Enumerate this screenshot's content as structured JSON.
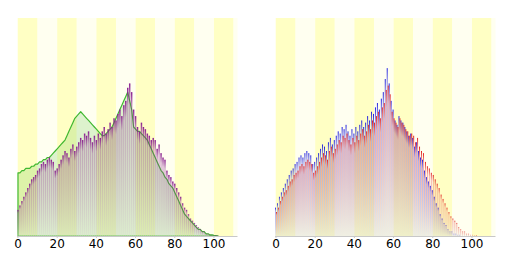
{
  "chart_data": [
    {
      "type": "bar",
      "x": [
        0,
        1,
        2,
        3,
        4,
        5,
        6,
        7,
        8,
        9,
        10,
        11,
        12,
        13,
        14,
        15,
        16,
        17,
        18,
        19,
        20,
        21,
        22,
        23,
        24,
        25,
        26,
        27,
        28,
        29,
        30,
        31,
        32,
        33,
        34,
        35,
        36,
        37,
        38,
        39,
        40,
        41,
        42,
        43,
        44,
        45,
        46,
        47,
        48,
        49,
        50,
        51,
        52,
        53,
        54,
        55,
        56,
        57,
        58,
        59,
        60,
        61,
        62,
        63,
        64,
        65,
        66,
        67,
        68,
        69,
        70,
        71,
        72,
        73,
        74,
        75,
        76,
        77,
        78,
        79,
        80,
        81,
        82,
        83,
        84,
        85,
        86,
        87,
        88,
        89,
        90,
        91,
        92,
        93,
        94,
        95,
        96,
        97,
        98,
        99,
        100,
        101,
        102
      ],
      "xlim": [
        -0.5,
        112
      ],
      "xticks": [
        0,
        20,
        40,
        60,
        80,
        100
      ],
      "ylim": [
        0,
        100
      ],
      "tick_labels": "x",
      "series": [
        {
          "type": "area",
          "color": "#40b830",
          "values": [
            29,
            29,
            30,
            30,
            31,
            31,
            31,
            32,
            32,
            33,
            33,
            34,
            34,
            35,
            35,
            36,
            36,
            37,
            38,
            39,
            40,
            41,
            42,
            43,
            44,
            46,
            48,
            50,
            52,
            54,
            55,
            56,
            57,
            56,
            55,
            54,
            53,
            52,
            51,
            50,
            49,
            48,
            47,
            46,
            46,
            47,
            48,
            49,
            50,
            52,
            54,
            56,
            58,
            60,
            62,
            64,
            66,
            62,
            58,
            50,
            49,
            48,
            48,
            47,
            46,
            45,
            44,
            42,
            40,
            38,
            36,
            34,
            32,
            30,
            29,
            27,
            26,
            24,
            23,
            22,
            20,
            18,
            16,
            14,
            12,
            10,
            9,
            8,
            7,
            6,
            5,
            4,
            3,
            3,
            2,
            2,
            1,
            1,
            0.5,
            0.5,
            0.3,
            0.2,
            0.1
          ]
        },
        {
          "type": "bar",
          "color": "#8a2090",
          "values": [
            12,
            14,
            16,
            18,
            20,
            22,
            24,
            26,
            27,
            28,
            30,
            31,
            33,
            34,
            33,
            35,
            36,
            35,
            34,
            30,
            31,
            33,
            35,
            37,
            39,
            38,
            36,
            40,
            42,
            39,
            41,
            43,
            45,
            44,
            47,
            46,
            48,
            45,
            43,
            46,
            44,
            47,
            45,
            48,
            50,
            47,
            49,
            52,
            50,
            54,
            53,
            56,
            58,
            55,
            60,
            62,
            68,
            70,
            66,
            58,
            55,
            50,
            48,
            52,
            50,
            49,
            47,
            46,
            44,
            45,
            44,
            40,
            42,
            38,
            36,
            35,
            30,
            28,
            27,
            25,
            24,
            22,
            20,
            18,
            15,
            13,
            12,
            10,
            8,
            7,
            6,
            5,
            4,
            3,
            2,
            2,
            1,
            1,
            0.5,
            0.5,
            0.3,
            0.2,
            0.1
          ]
        }
      ]
    },
    {
      "type": "bar",
      "x": [
        0,
        1,
        2,
        3,
        4,
        5,
        6,
        7,
        8,
        9,
        10,
        11,
        12,
        13,
        14,
        15,
        16,
        17,
        18,
        19,
        20,
        21,
        22,
        23,
        24,
        25,
        26,
        27,
        28,
        29,
        30,
        31,
        32,
        33,
        34,
        35,
        36,
        37,
        38,
        39,
        40,
        41,
        42,
        43,
        44,
        45,
        46,
        47,
        48,
        49,
        50,
        51,
        52,
        53,
        54,
        55,
        56,
        57,
        58,
        59,
        60,
        61,
        62,
        63,
        64,
        65,
        66,
        67,
        68,
        69,
        70,
        71,
        72,
        73,
        74,
        75,
        76,
        77,
        78,
        79,
        80,
        81,
        82,
        83,
        84,
        85,
        86,
        87,
        88,
        89,
        90,
        91,
        92,
        93,
        94,
        95,
        96,
        97,
        98,
        99,
        100,
        101,
        102
      ],
      "xlim": [
        -0.5,
        112
      ],
      "xticks": [
        0,
        20,
        40,
        60,
        80,
        100
      ],
      "ylim": [
        0,
        100
      ],
      "tick_labels": "x",
      "series": [
        {
          "type": "bar",
          "color": "#1a1ae0",
          "values": [
            13,
            15,
            18,
            20,
            22,
            24,
            26,
            28,
            30,
            31,
            33,
            34,
            36,
            37,
            36,
            38,
            39,
            38,
            37,
            33,
            34,
            36,
            38,
            40,
            42,
            41,
            39,
            43,
            45,
            42,
            44,
            46,
            48,
            47,
            50,
            49,
            51,
            48,
            46,
            49,
            47,
            50,
            48,
            51,
            53,
            50,
            52,
            55,
            53,
            57,
            56,
            59,
            61,
            58,
            63,
            66,
            72,
            77,
            70,
            62,
            58,
            53,
            51,
            55,
            53,
            52,
            50,
            48,
            46,
            47,
            45,
            41,
            43,
            39,
            36,
            35,
            30,
            27,
            25,
            23,
            21,
            18,
            15,
            13,
            10,
            8,
            6,
            5,
            3,
            2,
            2,
            1,
            1,
            0.5,
            0.5,
            0,
            0,
            0,
            0,
            0,
            0,
            0,
            0
          ]
        },
        {
          "type": "bar",
          "color": "#e01a1a",
          "values": [
            11,
            13,
            16,
            18,
            20,
            21,
            23,
            25,
            26,
            28,
            29,
            30,
            32,
            33,
            32,
            34,
            35,
            34,
            33,
            29,
            30,
            32,
            34,
            36,
            38,
            37,
            35,
            39,
            41,
            38,
            40,
            42,
            44,
            43,
            46,
            45,
            47,
            44,
            42,
            45,
            43,
            46,
            44,
            47,
            49,
            46,
            48,
            51,
            49,
            53,
            52,
            55,
            57,
            54,
            59,
            61,
            67,
            69,
            65,
            57,
            54,
            52,
            50,
            54,
            52,
            51,
            49,
            48,
            46,
            47,
            46,
            43,
            45,
            41,
            39,
            38,
            34,
            32,
            31,
            29,
            28,
            26,
            24,
            22,
            19,
            17,
            15,
            13,
            11,
            9,
            8,
            7,
            6,
            4,
            3,
            2,
            2,
            1,
            1,
            0.5,
            0.5,
            0.3,
            0.2
          ]
        }
      ]
    }
  ]
}
